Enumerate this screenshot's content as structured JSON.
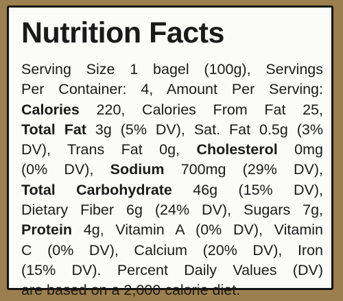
{
  "title": "Nutrition Facts",
  "lines": [
    [
      "Serving Size 1 bagel (100g), Servings"
    ],
    [
      "Per Container: 4, Amount Per Serving:"
    ],
    [
      "Calories",
      "220, Calories From Fat 25,"
    ],
    [
      "Total Fat",
      "3g (5% DV), Sat. Fat 0.5g (3%"
    ],
    [
      "DV), Trans Fat 0g,",
      "Cholesterol",
      "0mg"
    ],
    [
      "(0% DV),",
      "Sodium",
      "700mg (29% DV),"
    ],
    [
      "Total Carbohydrate",
      "46g (15% DV),"
    ],
    [
      "Dietary Fiber 6g (24% DV), Sugars 7g,"
    ],
    [
      "Protein",
      "4g, Vitamin A (0% DV), Vitamin"
    ],
    [
      "C (0% DV), Calcium (20% DV), Iron"
    ],
    [
      "(15% DV). Percent Daily Values (DV)"
    ],
    [
      "are based on a 2,000 calorie diet."
    ]
  ]
}
